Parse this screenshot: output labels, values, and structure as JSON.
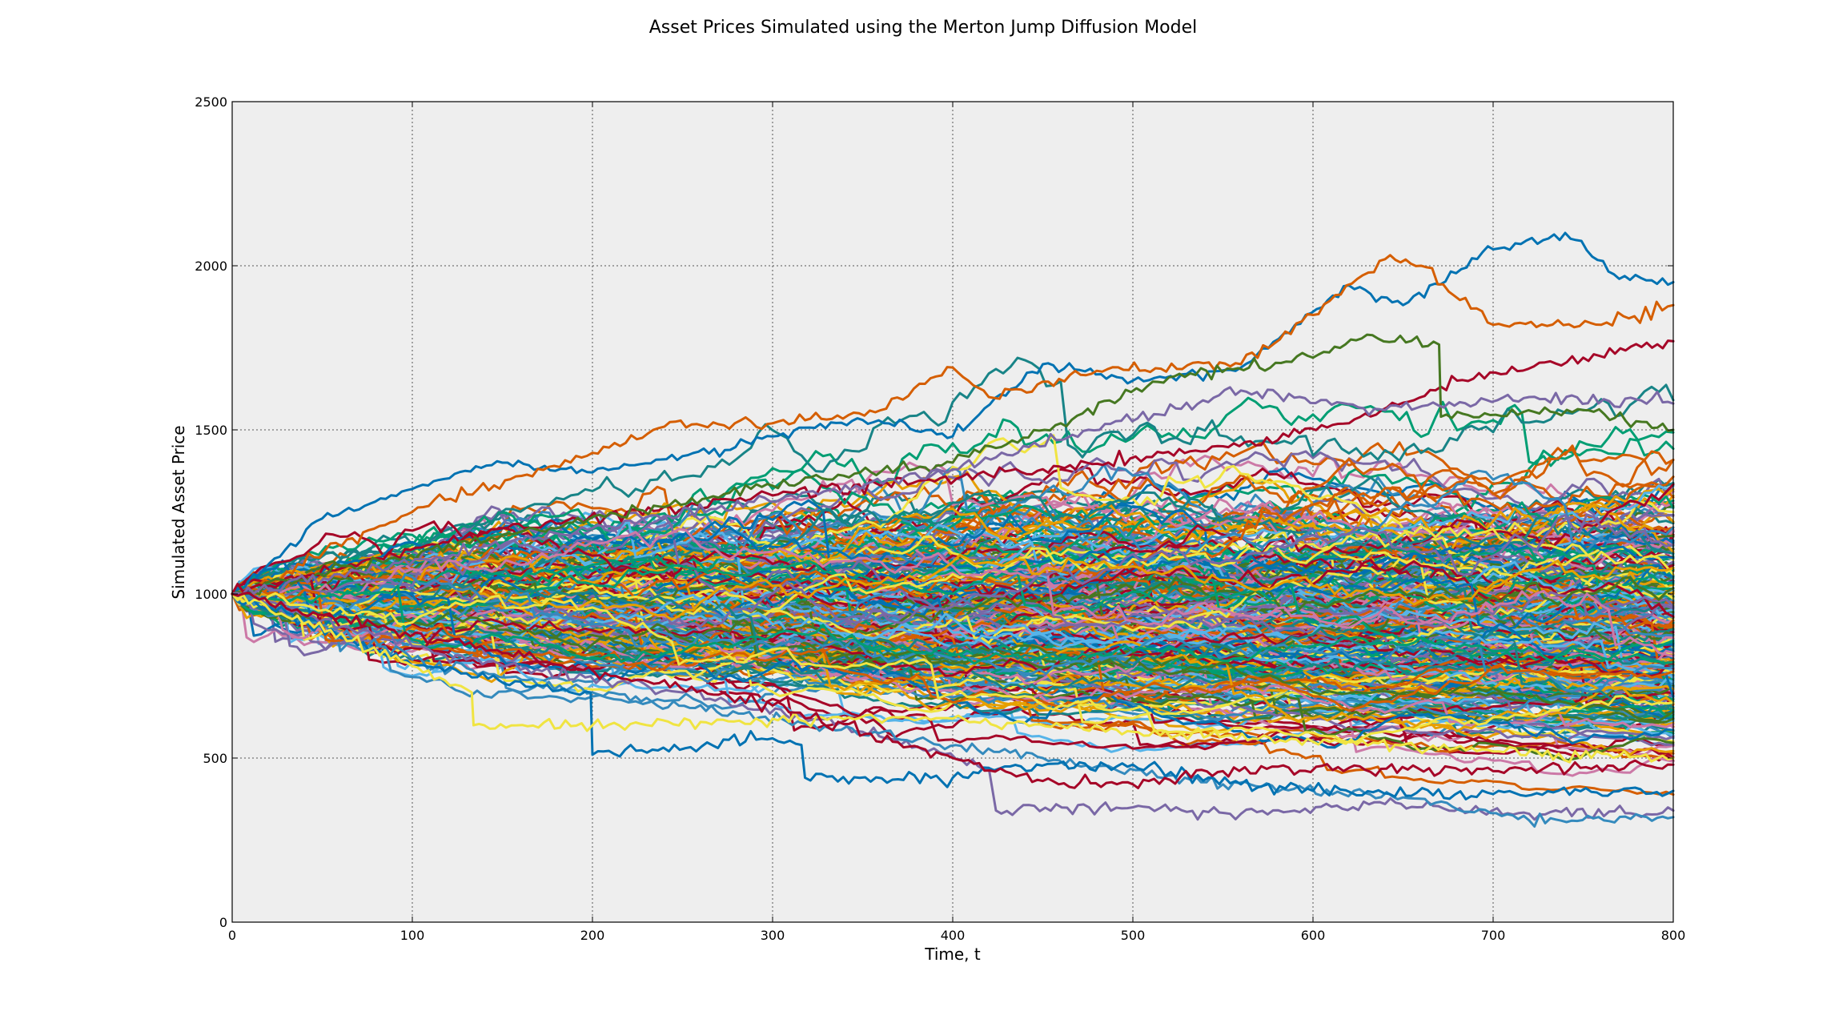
{
  "chart_data": {
    "type": "line",
    "title": "Asset Prices Simulated using the Merton Jump Diffusion Model",
    "xlabel": "Time, t",
    "ylabel": "Simulated Asset Price",
    "xlim": [
      0,
      800
    ],
    "ylim": [
      0,
      2500
    ],
    "x_ticks": [
      0,
      100,
      200,
      300,
      400,
      500,
      600,
      700,
      800
    ],
    "y_ticks": [
      0,
      500,
      1000,
      1500,
      2000,
      2500
    ],
    "x_tick_labels": [
      "0",
      "100",
      "200",
      "300",
      "400",
      "500",
      "600",
      "700",
      "800"
    ],
    "y_tick_labels": [
      "0",
      "500",
      "1000",
      "1500",
      "2000",
      "2500"
    ],
    "grid": true,
    "legend": "none",
    "background_color": "#eeeeee",
    "palette": [
      "#0072b2",
      "#d55e00",
      "#009e73",
      "#f0e442",
      "#cc79a7",
      "#56b4e9",
      "#a60628",
      "#7a68a6",
      "#467821",
      "#188487",
      "#e69f00",
      "#348abd"
    ],
    "initial_price": 1000,
    "num_paths_depicted": 400,
    "series_highlights": [
      {
        "name": "highest path (blue)",
        "color": "#0072b2",
        "points": [
          [
            0,
            1000
          ],
          [
            50,
            1230
          ],
          [
            100,
            1320
          ],
          [
            150,
            1400
          ],
          [
            200,
            1370
          ],
          [
            250,
            1420
          ],
          [
            300,
            1480
          ],
          [
            350,
            1530
          ],
          [
            400,
            1480
          ],
          [
            450,
            1700
          ],
          [
            500,
            1650
          ],
          [
            560,
            1690
          ],
          [
            620,
            1940
          ],
          [
            650,
            1880
          ],
          [
            700,
            2050
          ],
          [
            740,
            2100
          ],
          [
            770,
            1960
          ],
          [
            800,
            1950
          ]
        ]
      },
      {
        "name": "second highest path (orange)",
        "color": "#d55e00",
        "points": [
          [
            0,
            1000
          ],
          [
            100,
            1250
          ],
          [
            200,
            1430
          ],
          [
            240,
            1510
          ],
          [
            300,
            1520
          ],
          [
            360,
            1560
          ],
          [
            400,
            1690
          ],
          [
            420,
            1600
          ],
          [
            480,
            1680
          ],
          [
            560,
            1700
          ],
          [
            600,
            1850
          ],
          [
            640,
            2020
          ],
          [
            660,
            2000
          ],
          [
            700,
            1820
          ],
          [
            760,
            1820
          ],
          [
            800,
            1880
          ]
        ]
      },
      {
        "name": "crimson high path",
        "color": "#a60628",
        "points": [
          [
            0,
            1000
          ],
          [
            150,
            1200
          ],
          [
            300,
            1300
          ],
          [
            450,
            1380
          ],
          [
            550,
            1450
          ],
          [
            620,
            1520
          ],
          [
            680,
            1650
          ],
          [
            750,
            1720
          ],
          [
            800,
            1770
          ]
        ]
      },
      {
        "name": "green high path",
        "color": "#467821",
        "points": [
          [
            0,
            1000
          ],
          [
            150,
            1180
          ],
          [
            300,
            1330
          ],
          [
            400,
            1400
          ],
          [
            460,
            1520
          ],
          [
            520,
            1660
          ],
          [
            600,
            1720
          ],
          [
            630,
            1790
          ],
          [
            670,
            1760
          ],
          [
            671,
            1540
          ],
          [
            750,
            1560
          ],
          [
            800,
            1500
          ]
        ]
      },
      {
        "name": "purple upper path",
        "color": "#7a68a6",
        "points": [
          [
            0,
            1000
          ],
          [
            200,
            1200
          ],
          [
            400,
            1380
          ],
          [
            560,
            1620
          ],
          [
            640,
            1560
          ],
          [
            720,
            1600
          ],
          [
            800,
            1580
          ]
        ]
      },
      {
        "name": "lowest purple path",
        "color": "#7a68a6",
        "points": [
          [
            0,
            1000
          ],
          [
            130,
            800
          ],
          [
            250,
            700
          ],
          [
            350,
            580
          ],
          [
            420,
            470
          ],
          [
            424,
            340
          ],
          [
            500,
            350
          ],
          [
            560,
            330
          ],
          [
            640,
            360
          ],
          [
            720,
            330
          ],
          [
            800,
            340
          ]
        ]
      },
      {
        "name": "lowest blue path",
        "color": "#348abd",
        "points": [
          [
            0,
            1000
          ],
          [
            100,
            800
          ],
          [
            200,
            700
          ],
          [
            320,
            600
          ],
          [
            450,
            500
          ],
          [
            550,
            420
          ],
          [
            650,
            380
          ],
          [
            720,
            310
          ],
          [
            800,
            320
          ]
        ]
      },
      {
        "name": "low blue jump path",
        "color": "#0072b2",
        "points": [
          [
            0,
            1000
          ],
          [
            100,
            780
          ],
          [
            199,
            700
          ],
          [
            200,
            510
          ],
          [
            300,
            560
          ],
          [
            316,
            540
          ],
          [
            318,
            440
          ],
          [
            400,
            440
          ],
          [
            420,
            470
          ],
          [
            500,
            480
          ],
          [
            560,
            420
          ],
          [
            600,
            400
          ],
          [
            700,
            390
          ],
          [
            800,
            400
          ]
        ]
      },
      {
        "name": "yellow low jump path",
        "color": "#f0e442",
        "points": [
          [
            0,
            1000
          ],
          [
            100,
            780
          ],
          [
            133,
            700
          ],
          [
            134,
            600
          ],
          [
            200,
            600
          ],
          [
            260,
            610
          ],
          [
            300,
            620
          ],
          [
            400,
            620
          ],
          [
            500,
            580
          ],
          [
            600,
            550
          ],
          [
            700,
            520
          ],
          [
            800,
            500
          ]
        ]
      },
      {
        "name": "crimson low path",
        "color": "#a60628",
        "points": [
          [
            0,
            1000
          ],
          [
            150,
            820
          ],
          [
            300,
            660
          ],
          [
            400,
            500
          ],
          [
            450,
            430
          ],
          [
            500,
            420
          ],
          [
            550,
            460
          ],
          [
            620,
            470
          ],
          [
            700,
            460
          ],
          [
            800,
            480
          ]
        ]
      }
    ]
  }
}
